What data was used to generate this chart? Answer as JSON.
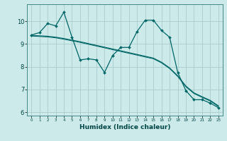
{
  "xlabel": "Humidex (Indice chaleur)",
  "bg_color": "#cceaea",
  "grid_color": "#aacccc",
  "line_color": "#006666",
  "x_values": [
    0,
    1,
    2,
    3,
    4,
    5,
    6,
    7,
    8,
    9,
    10,
    11,
    12,
    13,
    14,
    15,
    16,
    17,
    18,
    19,
    20,
    21,
    22,
    23
  ],
  "y_noisy": [
    9.4,
    9.5,
    9.9,
    9.8,
    10.4,
    9.3,
    8.3,
    8.35,
    8.3,
    7.75,
    8.5,
    8.85,
    8.85,
    9.55,
    10.05,
    10.05,
    9.6,
    9.3,
    7.75,
    6.95,
    6.55,
    6.55,
    6.4,
    6.2
  ],
  "y_smooth1": [
    9.38,
    9.36,
    9.34,
    9.3,
    9.24,
    9.17,
    9.1,
    9.02,
    8.94,
    8.86,
    8.78,
    8.7,
    8.62,
    8.54,
    8.46,
    8.38,
    8.2,
    7.95,
    7.6,
    7.15,
    6.85,
    6.68,
    6.52,
    6.28
  ],
  "y_smooth2": [
    9.35,
    9.33,
    9.31,
    9.27,
    9.21,
    9.14,
    9.07,
    8.99,
    8.91,
    8.83,
    8.75,
    8.67,
    8.59,
    8.51,
    8.43,
    8.35,
    8.17,
    7.92,
    7.57,
    7.12,
    6.82,
    6.65,
    6.49,
    6.25
  ],
  "xlim": [
    -0.5,
    23.5
  ],
  "ylim": [
    5.85,
    10.75
  ],
  "yticks": [
    6,
    7,
    8,
    9,
    10
  ],
  "xticks": [
    0,
    1,
    2,
    3,
    4,
    5,
    6,
    7,
    8,
    9,
    10,
    11,
    12,
    13,
    14,
    15,
    16,
    17,
    18,
    19,
    20,
    21,
    22,
    23
  ]
}
